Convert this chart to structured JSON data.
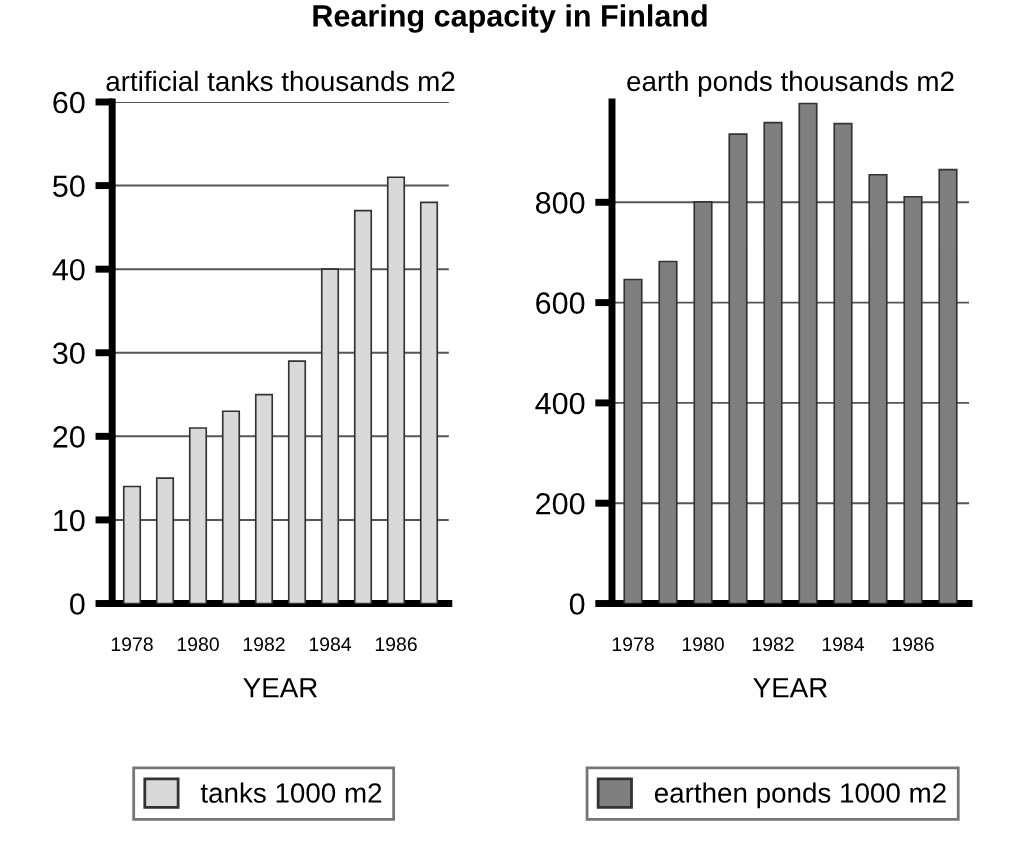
{
  "chart_data": [
    {
      "type": "bar",
      "title": "Rearing capacity in Finland",
      "subtitle": "artificial tanks thousands m2",
      "xlabel": "YEAR",
      "categories": [
        "1978",
        null,
        "1980",
        null,
        "1982",
        null,
        "1984",
        null,
        "1986",
        null
      ],
      "series": [
        {
          "name": "tanks 1000 m2",
          "color": "#d9d9d9",
          "values": [
            14,
            15,
            21,
            23,
            25,
            29,
            40,
            47,
            51,
            48
          ]
        }
      ],
      "ylim": [
        0,
        60
      ],
      "yticks": [
        0,
        10,
        20,
        30,
        40,
        50,
        60
      ],
      "grid": "y",
      "legend": "bottom"
    },
    {
      "type": "bar",
      "subtitle": "earth ponds thousands m2",
      "xlabel": "YEAR",
      "categories": [
        "1978",
        null,
        "1980",
        null,
        "1982",
        null,
        "1984",
        null,
        "1986",
        null
      ],
      "series": [
        {
          "name": "earthen ponds 1000 m2",
          "color": "#7f7f7f",
          "values": [
            646,
            682,
            801,
            936,
            959,
            997,
            957,
            855,
            811,
            865
          ]
        }
      ],
      "ylim": [
        0,
        1000
      ],
      "yticks": [
        0,
        200,
        400,
        600,
        800
      ],
      "grid": "y",
      "legend": "bottom"
    }
  ]
}
